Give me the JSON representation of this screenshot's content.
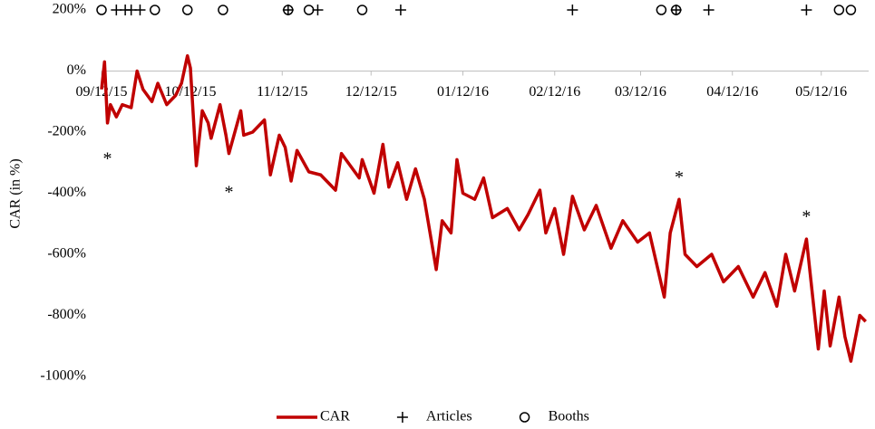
{
  "chart_data": {
    "type": "line",
    "y_label": "CAR (in %)",
    "xlim": [
      "09/12/15",
      "05/28/16"
    ],
    "xticks": [
      "09/12/15",
      "10/12/15",
      "11/12/15",
      "12/12/15",
      "01/12/16",
      "02/12/16",
      "03/12/16",
      "04/12/16",
      "05/12/16"
    ],
    "ylim": [
      -1000,
      200
    ],
    "yticks": [
      {
        "value": -1000,
        "label": "-1000%"
      },
      {
        "value": -800,
        "label": "-800%"
      },
      {
        "value": -600,
        "label": "-600%"
      },
      {
        "value": -400,
        "label": "-400%"
      },
      {
        "value": -200,
        "label": "-200%"
      },
      {
        "value": 0,
        "label": "0%"
      },
      {
        "value": 200,
        "label": "200%"
      }
    ],
    "series": [
      {
        "name": "CAR",
        "type": "line",
        "color": "#c00000",
        "x": [
          "09/12/15",
          "09/13/15",
          "09/14/15",
          "09/15/15",
          "09/17/15",
          "09/19/15",
          "09/22/15",
          "09/24/15",
          "09/26/15",
          "09/29/15",
          "10/01/15",
          "10/04/15",
          "10/07/15",
          "10/09/15",
          "10/11/15",
          "10/12/15",
          "10/14/15",
          "10/16/15",
          "10/18/15",
          "10/19/15",
          "10/22/15",
          "10/24/15",
          "10/25/15",
          "10/29/15",
          "10/30/15",
          "11/02/15",
          "11/06/15",
          "11/08/15",
          "11/11/15",
          "11/13/15",
          "11/15/15",
          "11/17/15",
          "11/21/15",
          "11/25/15",
          "11/30/15",
          "12/02/15",
          "12/05/15",
          "12/08/15",
          "12/09/15",
          "12/13/15",
          "12/16/15",
          "12/18/15",
          "12/21/15",
          "12/24/15",
          "12/27/15",
          "12/30/15",
          "01/03/16",
          "01/05/16",
          "01/08/16",
          "01/10/16",
          "01/12/16",
          "01/16/16",
          "01/19/16",
          "01/22/16",
          "01/27/16",
          "01/31/16",
          "02/03/16",
          "02/07/16",
          "02/09/16",
          "02/12/16",
          "02/15/16",
          "02/18/16",
          "02/22/16",
          "02/26/16",
          "03/02/16",
          "03/06/16",
          "03/11/16",
          "03/15/16",
          "03/20/16",
          "03/22/16",
          "03/25/16",
          "03/27/16",
          "03/31/16",
          "04/05/16",
          "04/09/16",
          "04/14/16",
          "04/19/16",
          "04/23/16",
          "04/27/16",
          "04/30/16",
          "05/03/16",
          "05/07/16",
          "05/11/16",
          "05/13/16",
          "05/15/16",
          "05/18/16",
          "05/20/16",
          "05/22/16",
          "05/25/16",
          "05/27/16"
        ],
        "values": [
          -60,
          30,
          -170,
          -110,
          -150,
          -110,
          -120,
          0,
          -60,
          -100,
          -40,
          -110,
          -80,
          -40,
          50,
          10,
          -310,
          -130,
          -170,
          -220,
          -110,
          -210,
          -270,
          -130,
          -210,
          -200,
          -160,
          -340,
          -210,
          -250,
          -360,
          -260,
          -330,
          -340,
          -390,
          -270,
          -310,
          -350,
          -290,
          -400,
          -240,
          -380,
          -300,
          -420,
          -320,
          -420,
          -650,
          -490,
          -530,
          -290,
          -400,
          -420,
          -350,
          -480,
          -450,
          -520,
          -470,
          -390,
          -530,
          -450,
          -600,
          -410,
          -520,
          -440,
          -580,
          -490,
          -560,
          -530,
          -740,
          -530,
          -420,
          -600,
          -640,
          -600,
          -690,
          -640,
          -740,
          -660,
          -770,
          -600,
          -720,
          -550,
          -910,
          -720,
          -900,
          -740,
          -870,
          -950,
          -800,
          -820
        ]
      },
      {
        "name": "Articles",
        "type": "plus",
        "color": "#000000",
        "x": [
          "09/17/15",
          "09/20/15",
          "09/22/15",
          "09/25/15",
          "11/14/15",
          "11/24/15",
          "12/22/15",
          "02/18/16",
          "03/24/16",
          "04/04/16",
          "05/07/16"
        ],
        "values": [
          200,
          200,
          200,
          200,
          200,
          200,
          200,
          200,
          200,
          200,
          200
        ]
      },
      {
        "name": "Booths",
        "type": "circle",
        "color": "#000000",
        "x": [
          "09/12/15",
          "09/30/15",
          "10/11/15",
          "10/23/15",
          "11/14/15",
          "11/21/15",
          "12/09/15",
          "03/19/16",
          "03/24/16",
          "05/18/16",
          "05/22/16"
        ],
        "values": [
          200,
          200,
          200,
          200,
          200,
          200,
          200,
          200,
          200,
          200,
          200
        ]
      }
    ],
    "annotations": [
      {
        "text": "*",
        "x": "09/14/15",
        "y": -280
      },
      {
        "text": "*",
        "x": "10/25/15",
        "y": -390
      },
      {
        "text": "*",
        "x": "03/25/16",
        "y": -340
      },
      {
        "text": "*",
        "x": "05/07/16",
        "y": -470
      }
    ]
  }
}
